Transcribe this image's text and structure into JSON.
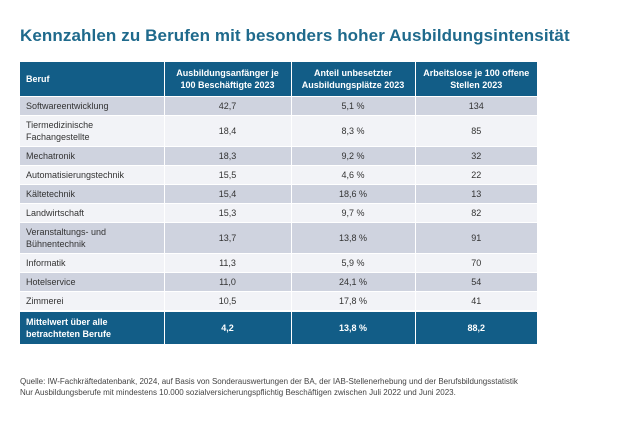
{
  "title": "Kennzahlen zu Berufen mit besonders hoher Ausbildungsintensität",
  "table": {
    "headers": [
      "Beruf",
      "Ausbildungsanfänger je 100 Beschäftigte 2023",
      "Anteil unbesetzter Ausbildungsplätze 2023",
      "Arbeitslose je 100 offene Stellen 2023"
    ],
    "rows": [
      {
        "beruf": "Softwareentwicklung",
        "anfaenger": "42,7",
        "unbesetzt": "5,1 %",
        "arbeitslose": "134"
      },
      {
        "beruf": "Tiermedizinische Fachangestellte",
        "anfaenger": "18,4",
        "unbesetzt": "8,3 %",
        "arbeitslose": "85"
      },
      {
        "beruf": "Mechatronik",
        "anfaenger": "18,3",
        "unbesetzt": "9,2 %",
        "arbeitslose": "32"
      },
      {
        "beruf": "Automatisierungstechnik",
        "anfaenger": "15,5",
        "unbesetzt": "4,6 %",
        "arbeitslose": "22"
      },
      {
        "beruf": "Kältetechnik",
        "anfaenger": "15,4",
        "unbesetzt": "18,6 %",
        "arbeitslose": "13"
      },
      {
        "beruf": "Landwirtschaft",
        "anfaenger": "15,3",
        "unbesetzt": "9,7 %",
        "arbeitslose": "82"
      },
      {
        "beruf": "Veranstaltungs- und Bühnentechnik",
        "anfaenger": "13,7",
        "unbesetzt": "13,8 %",
        "arbeitslose": "91"
      },
      {
        "beruf": "Informatik",
        "anfaenger": "11,3",
        "unbesetzt": "5,9 %",
        "arbeitslose": "70"
      },
      {
        "beruf": "Hotelservice",
        "anfaenger": "11,0",
        "unbesetzt": "24,1 %",
        "arbeitslose": "54"
      },
      {
        "beruf": "Zimmerei",
        "anfaenger": "10,5",
        "unbesetzt": "17,8 %",
        "arbeitslose": "41"
      }
    ],
    "footer": {
      "label": "Mittelwert über alle betrachteten Berufe",
      "anfaenger": "4,2",
      "unbesetzt": "13,8 %",
      "arbeitslose": "88,2"
    }
  },
  "source": {
    "line1": "Quelle: IW-Fachkräftedatenbank, 2024, auf Basis von Sonderauswertungen der BA, der IAB-Stellenerhebung und der Berufsbildungsstatistik",
    "line2": "Nur Ausbildungsberufe mit mindestens 10.000 sozialversicherungspflichtig Beschäftigen zwischen Juli 2022 und Juni 2023."
  }
}
